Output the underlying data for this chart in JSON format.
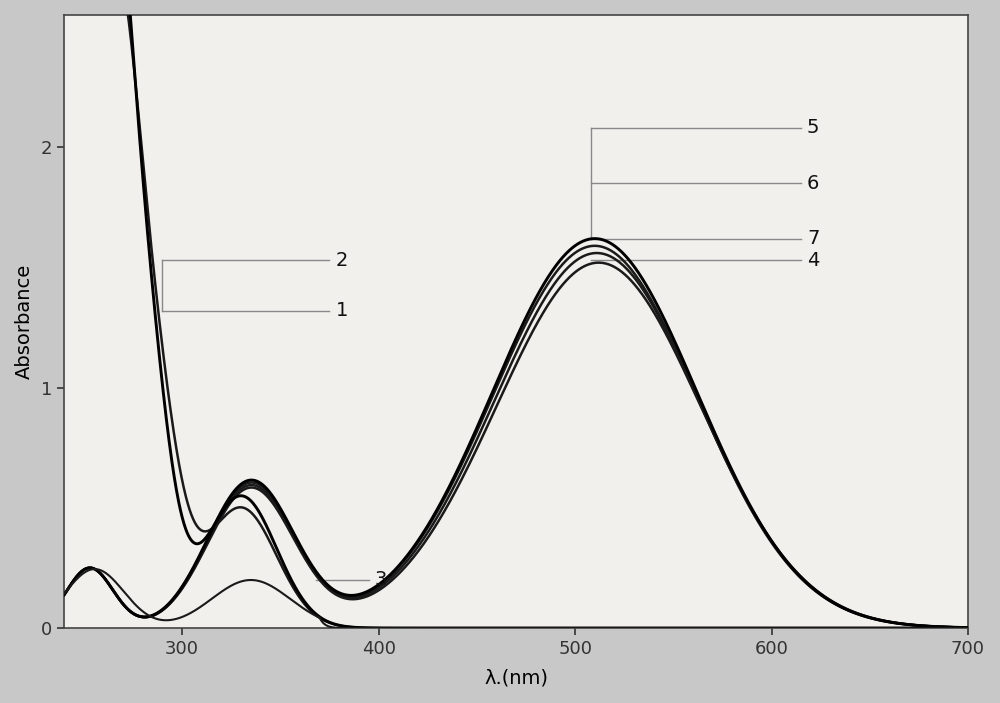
{
  "xlabel": "λ.(nm)",
  "ylabel": "Absorbance",
  "xlim": [
    240,
    700
  ],
  "ylim": [
    0,
    2.55
  ],
  "xticks": [
    300,
    400,
    500,
    600,
    700
  ],
  "yticks": [
    0,
    1.0,
    2.0
  ],
  "background": "#c8c8c8",
  "plot_bg": "#f2f0ed",
  "label_fontsize": 14,
  "tick_fontsize": 13,
  "ann_color": "#888888",
  "ann_fontsize": 14
}
